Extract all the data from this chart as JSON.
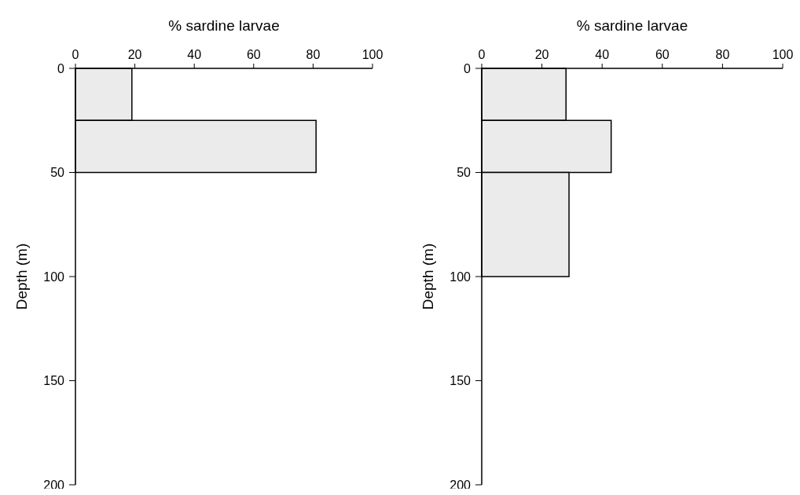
{
  "chart_data": [
    {
      "type": "histogram",
      "orientation": "horizontal",
      "xlabel": "% sardine larvae",
      "ylabel": "Depth (m)",
      "bins": [
        0,
        25,
        50
      ],
      "values": [
        19,
        81
      ],
      "color": "#ebebeb",
      "xlim": [
        0,
        100
      ],
      "xticks": [
        0,
        20,
        40,
        60,
        80,
        100
      ],
      "ylim": [
        200,
        0
      ],
      "yticks": [
        0,
        50,
        100,
        150,
        200
      ]
    },
    {
      "type": "histogram",
      "orientation": "horizontal",
      "xlabel": "% sardine larvae",
      "ylabel": "Depth (m)",
      "bins": [
        0,
        25,
        50,
        100
      ],
      "values": [
        28,
        43,
        29
      ],
      "color": "#ebebeb",
      "xlim": [
        0,
        100
      ],
      "xticks": [
        0,
        20,
        40,
        60,
        80,
        100
      ],
      "ylim": [
        200,
        0
      ],
      "yticks": [
        0,
        50,
        100,
        150,
        200
      ]
    }
  ]
}
